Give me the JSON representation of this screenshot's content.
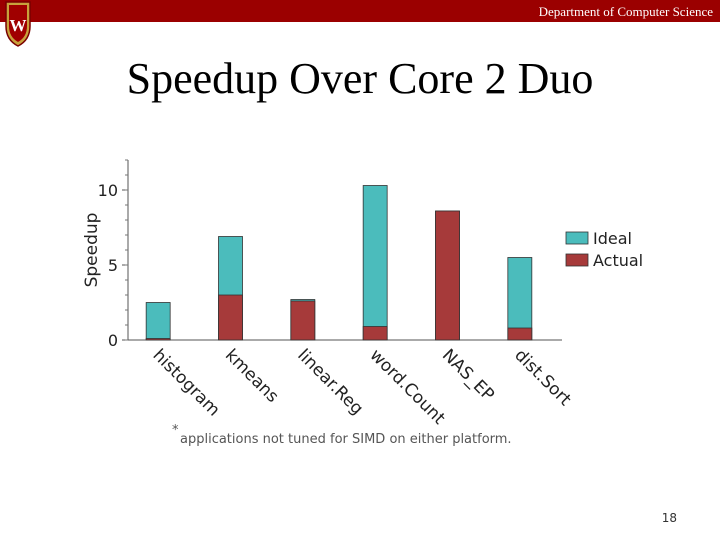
{
  "header": {
    "department": "Department of Computer Science"
  },
  "footnote": {
    "mark": "*",
    "text": "applications not tuned for SIMD on either platform."
  },
  "page_number": "18",
  "chart_data": {
    "type": "bar",
    "title": "Speedup Over Core 2 Duo",
    "y_label": "Speedup",
    "categories": [
      "histogram",
      "kmeans",
      "linear.Reg",
      "word.Count",
      "NAS_EP",
      "dist.Sort"
    ],
    "series": [
      {
        "name": "Ideal",
        "color": "#4bbcbc",
        "values": [
          2.5,
          6.9,
          2.7,
          10.3,
          8.6,
          5.5
        ]
      },
      {
        "name": "Actual",
        "color": "#a63a3a",
        "values": [
          0.1,
          3.0,
          2.6,
          0.9,
          8.6,
          0.8
        ]
      }
    ],
    "ylim": [
      0,
      12
    ],
    "yticks": [
      0,
      5,
      10
    ],
    "legend": "right"
  }
}
